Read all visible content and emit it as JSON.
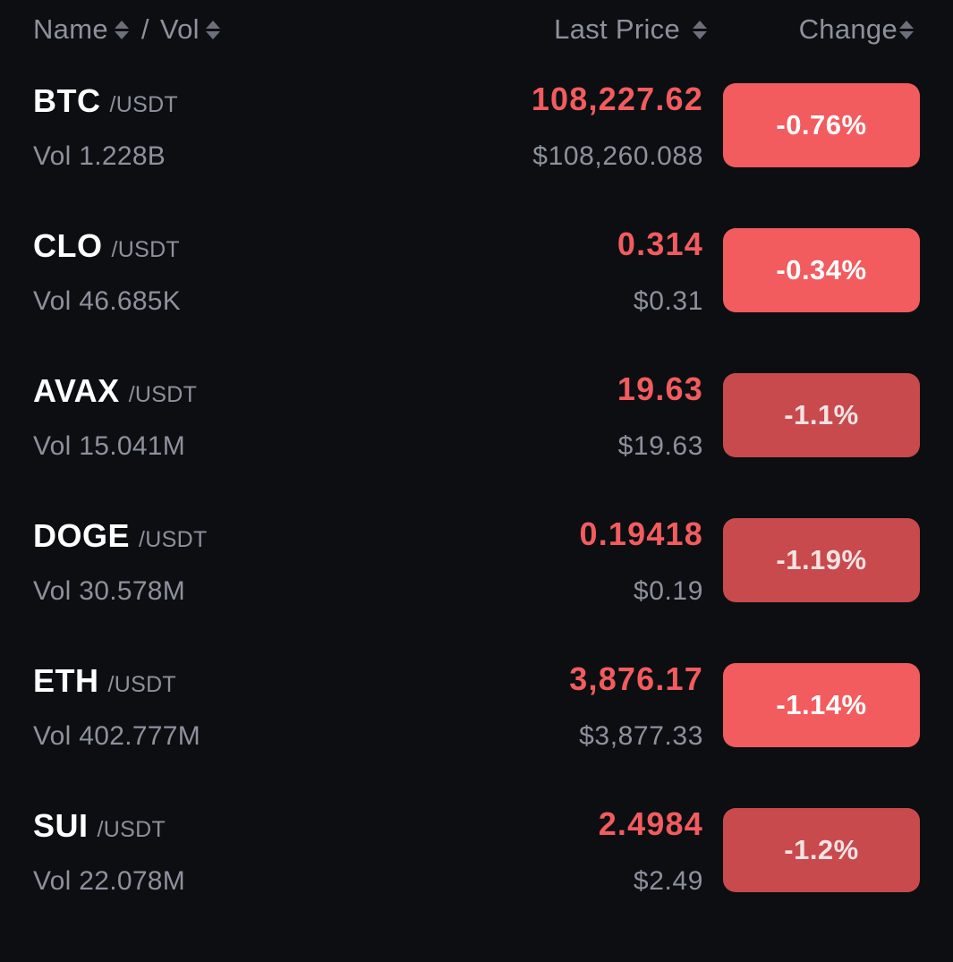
{
  "header": {
    "name_label": "Name",
    "separator": "/",
    "vol_label": "Vol",
    "price_label": "Last Price",
    "change_label": "Change"
  },
  "colors": {
    "background": "#0c0e12",
    "negative_text": "#f25c5e",
    "badge_bright": "#f25c5e",
    "badge_dim": "#c84a4d",
    "muted_text": "#8c919c"
  },
  "rows": [
    {
      "symbol": "BTC",
      "quote": "/USDT",
      "volume": "Vol 1.228B",
      "price": "108,227.62",
      "usd_price": "$108,260.088",
      "change": "-0.76%",
      "badge_tone": "bright"
    },
    {
      "symbol": "CLO",
      "quote": "/USDT",
      "volume": "Vol 46.685K",
      "price": "0.314",
      "usd_price": "$0.31",
      "change": "-0.34%",
      "badge_tone": "bright"
    },
    {
      "symbol": "AVAX",
      "quote": "/USDT",
      "volume": "Vol 15.041M",
      "price": "19.63",
      "usd_price": "$19.63",
      "change": "-1.1%",
      "badge_tone": "dim"
    },
    {
      "symbol": "DOGE",
      "quote": "/USDT",
      "volume": "Vol 30.578M",
      "price": "0.19418",
      "usd_price": "$0.19",
      "change": "-1.19%",
      "badge_tone": "dim"
    },
    {
      "symbol": "ETH",
      "quote": "/USDT",
      "volume": "Vol 402.777M",
      "price": "3,876.17",
      "usd_price": "$3,877.33",
      "change": "-1.14%",
      "badge_tone": "bright"
    },
    {
      "symbol": "SUI",
      "quote": "/USDT",
      "volume": "Vol 22.078M",
      "price": "2.4984",
      "usd_price": "$2.49",
      "change": "-1.2%",
      "badge_tone": "dim"
    }
  ]
}
